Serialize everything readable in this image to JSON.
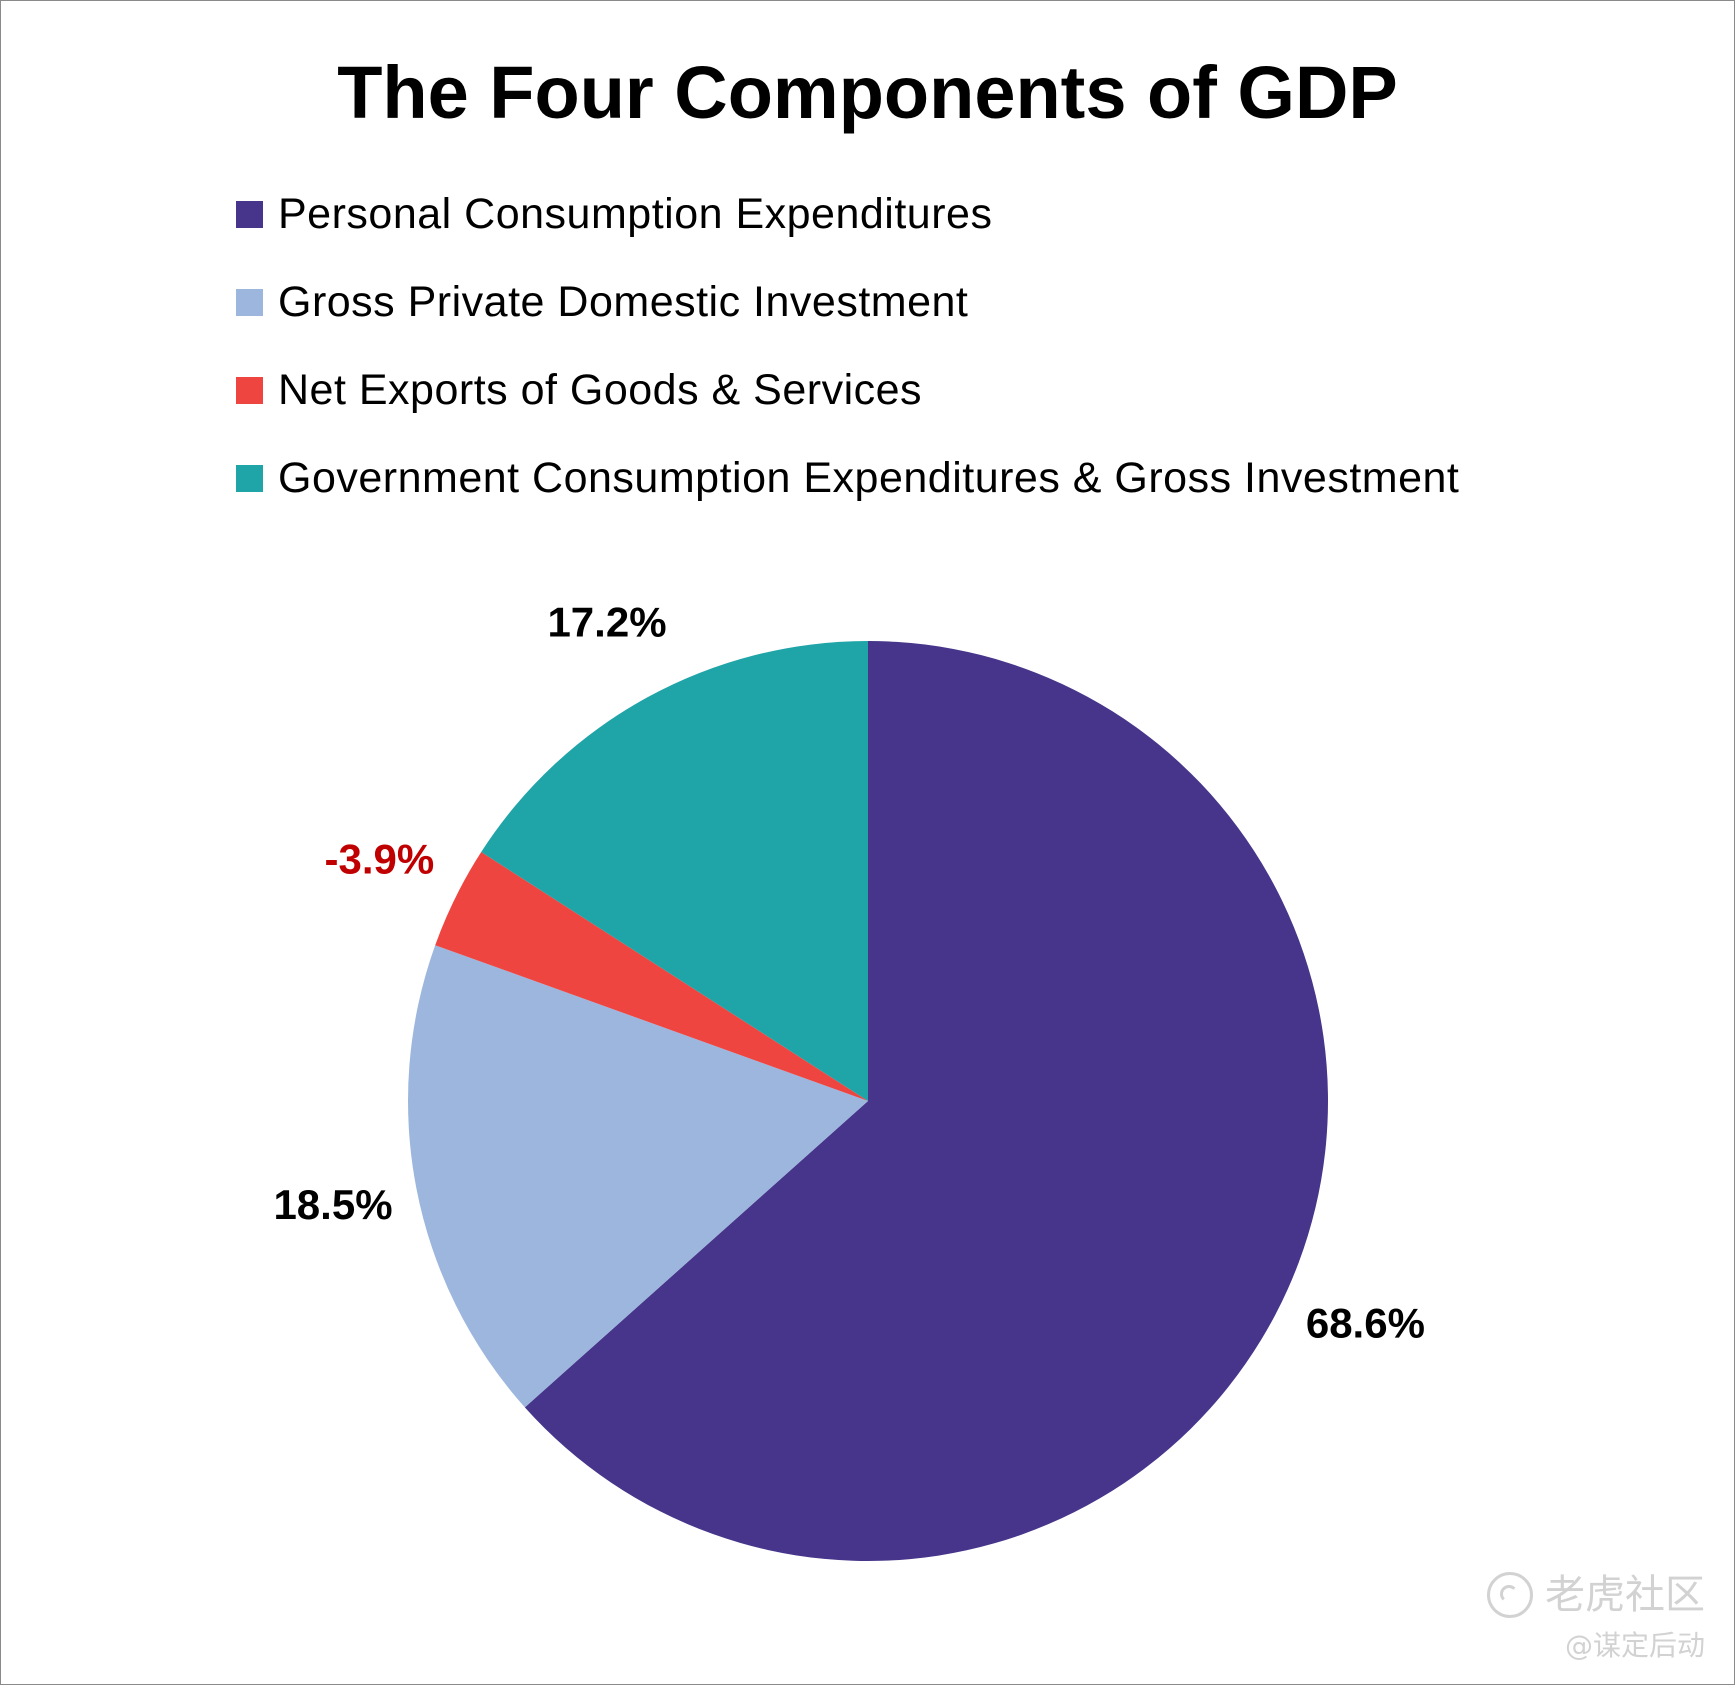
{
  "chart_data": {
    "type": "pie",
    "title": "The Four Components of GDP",
    "legend_position": "top-left",
    "slices": [
      {
        "name": "Personal Consumption Expenditures",
        "label": "68.6%",
        "value": 68.6,
        "color": "#46358a",
        "label_color": "#000000"
      },
      {
        "name": "Gross Private Domestic Investment",
        "label": "18.5%",
        "value": 18.5,
        "color": "#9db6de",
        "label_color": "#000000"
      },
      {
        "name": "Net Exports of Goods & Services",
        "label": "-3.9%",
        "value": -3.9,
        "color": "#ef4540",
        "label_color": "#c00000"
      },
      {
        "name": "Government Consumption Expenditures & Gross Investment",
        "label": "17.2%",
        "value": 17.2,
        "color": "#1fa4a8",
        "label_color": "#000000"
      }
    ]
  },
  "watermark": {
    "brand": "老虎社区",
    "author": "@谋定后动",
    "icon": "tiger-community-logo-icon"
  }
}
